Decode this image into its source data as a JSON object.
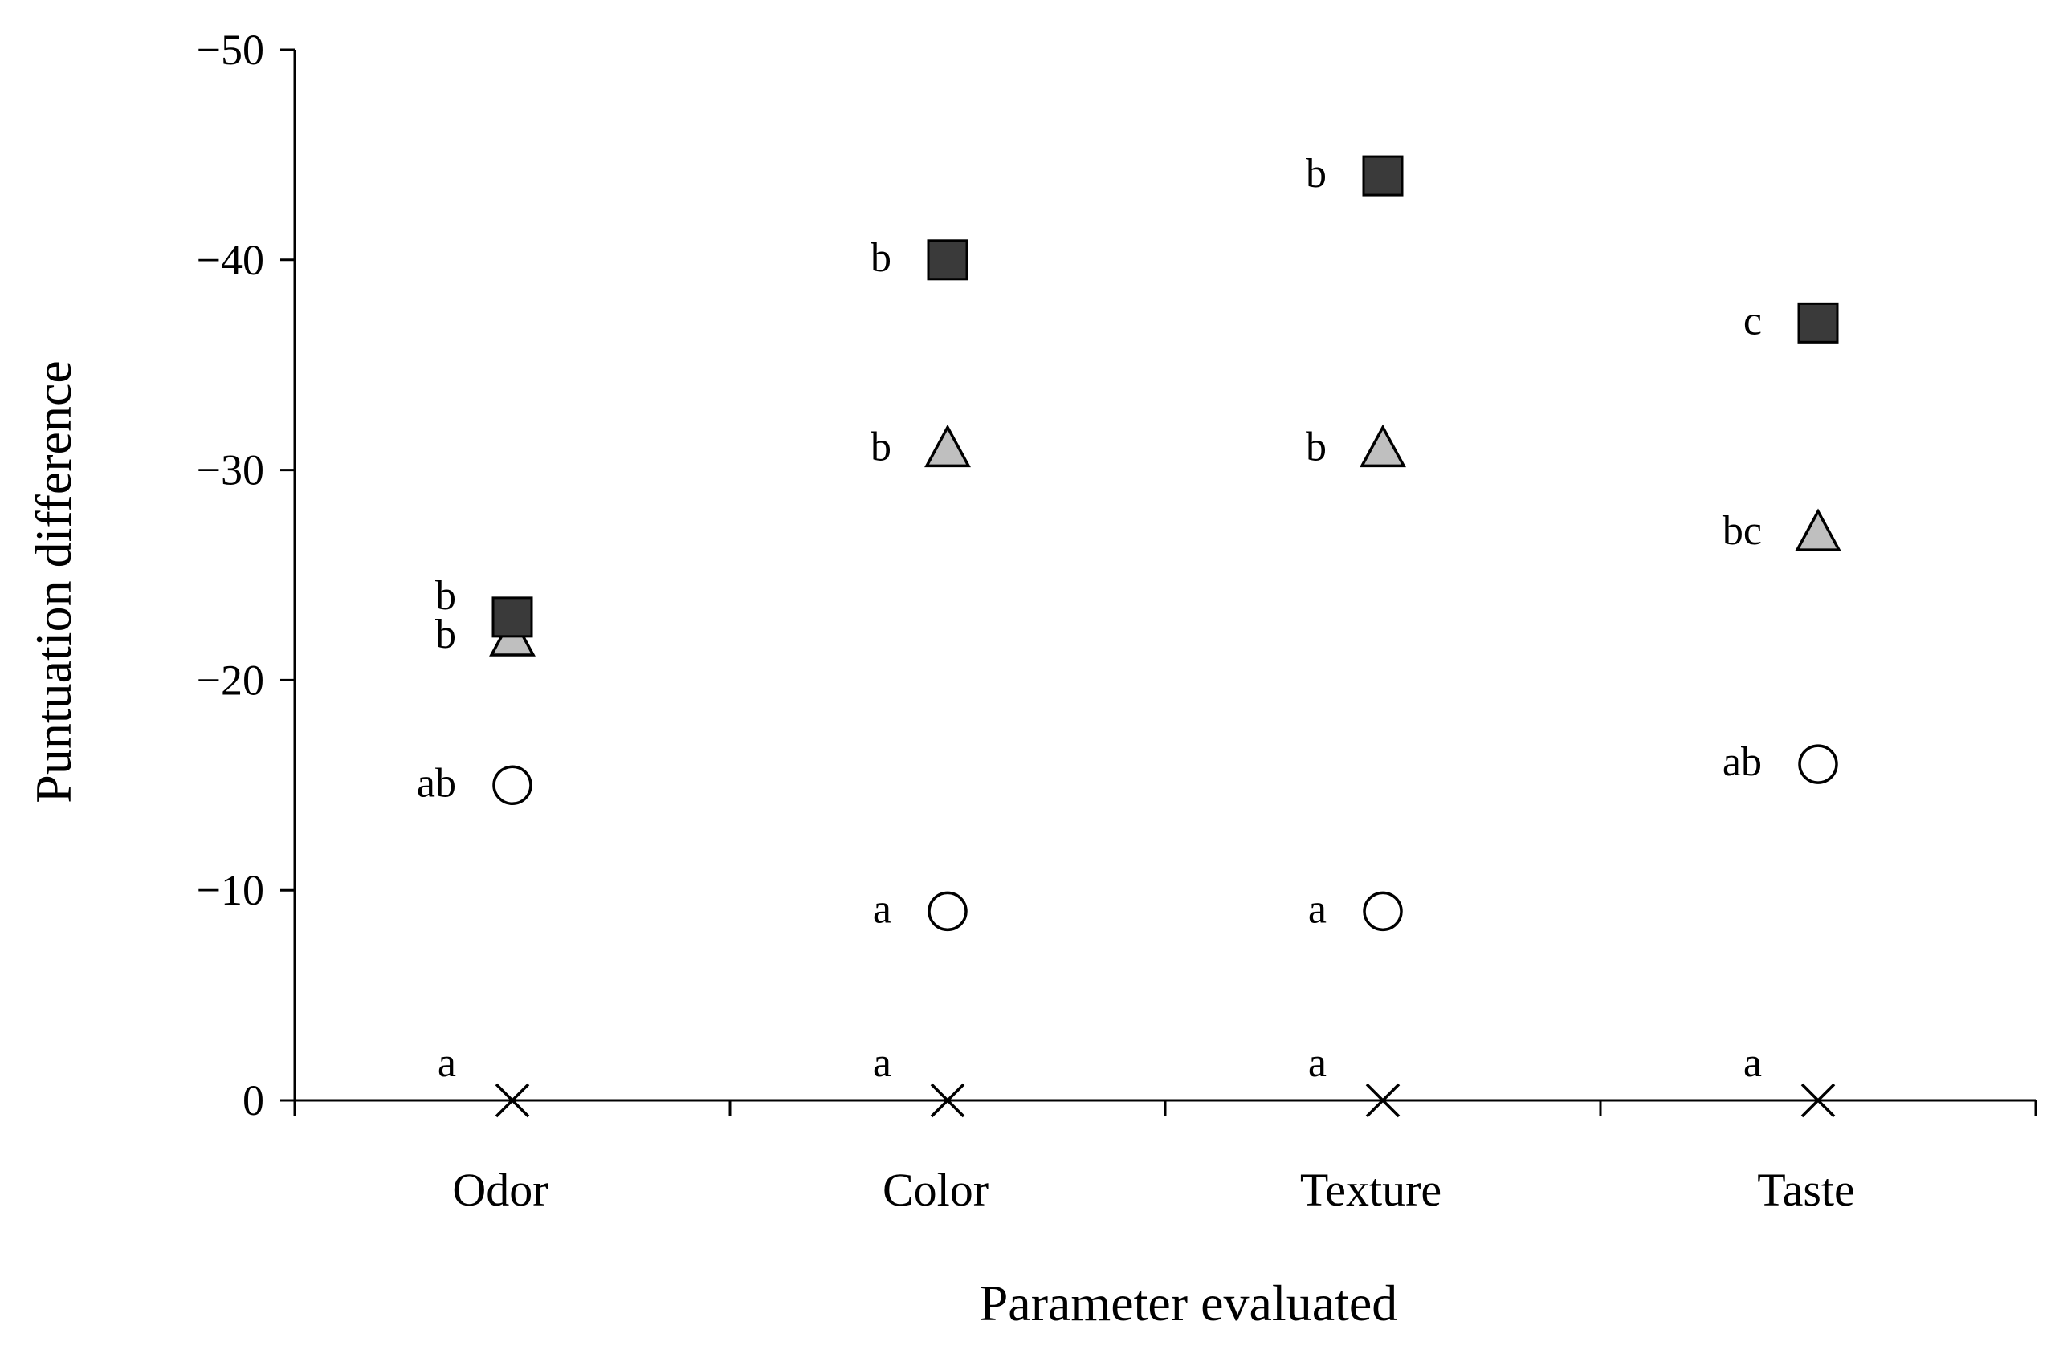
{
  "chart_data": {
    "type": "scatter",
    "xlabel": "Parameter evaluated",
    "ylabel": "Puntuation difference",
    "categories": [
      "Odor",
      "Color",
      "Texture",
      "Taste"
    ],
    "y_ticks": [
      0,
      -10,
      -20,
      -30,
      -40,
      -50
    ],
    "y_tick_labels": [
      "0",
      "−10",
      "−20",
      "−30",
      "−40",
      "−50"
    ],
    "ylim": [
      0,
      -50
    ],
    "y_axis_inverted": true,
    "grid": false,
    "legend": "none",
    "series": [
      {
        "marker": "cross",
        "color": "#000000",
        "values": [
          0,
          0,
          0,
          0
        ],
        "labels": [
          "a",
          "a",
          "a",
          "a"
        ]
      },
      {
        "marker": "circle",
        "color": "#ffffff",
        "values": [
          -15,
          -9,
          -9,
          -16
        ],
        "labels": [
          "ab",
          "a",
          "a",
          "ab"
        ]
      },
      {
        "marker": "triangle",
        "color": "#bfbfbf",
        "values": [
          -22,
          -31,
          -31,
          -27
        ],
        "labels": [
          "b",
          "b",
          "b",
          "bc"
        ]
      },
      {
        "marker": "square",
        "color": "#3a3a3a",
        "values": [
          -23,
          -40,
          -44,
          -37
        ],
        "labels": [
          "b",
          "b",
          "b",
          "c"
        ]
      }
    ]
  }
}
